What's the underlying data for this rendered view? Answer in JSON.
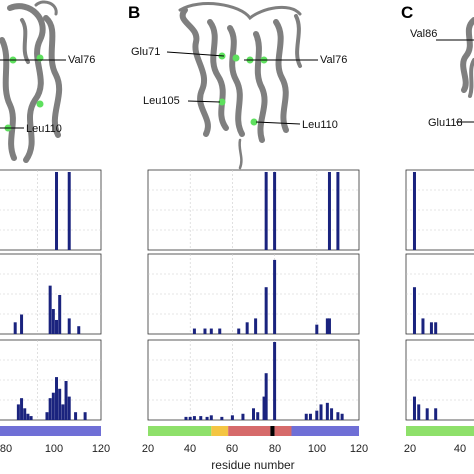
{
  "panels": [
    {
      "label": "",
      "residues": [
        "Val76",
        "Leu110"
      ],
      "x_ticks": [
        "80",
        "100",
        "120"
      ]
    },
    {
      "label": "B",
      "residues": [
        "Glu71",
        "Val76",
        "Leu105",
        "Leu110"
      ],
      "x_ticks": [
        "20",
        "40",
        "60",
        "80",
        "100",
        "120"
      ]
    },
    {
      "label": "C",
      "residues": [
        "Val86",
        "Glu118"
      ],
      "x_ticks": [
        "20",
        "40"
      ]
    }
  ],
  "x_axis_label": "residue number",
  "colors": {
    "bar": "#1a237e",
    "protein": "#7f7f7f",
    "highlight": "#5ee05e",
    "segment_green": "#8ee06a",
    "segment_yellow": "#f4c542",
    "segment_red": "#d66a6a",
    "segment_blue": "#6f6fd6",
    "segment_black": "#000000"
  },
  "chart_data": [
    {
      "type": "bar",
      "panel": "A",
      "rows": [
        {
          "x": [
            80,
            106,
            110
          ],
          "values": [
            1,
            1,
            1
          ]
        },
        {
          "x": [
            80,
            93,
            95,
            104,
            105,
            106,
            107,
            110,
            113
          ],
          "values": [
            1,
            0.15,
            0.25,
            0.62,
            0.32,
            0.18,
            0.5,
            0.2,
            0.1
          ]
        },
        {
          "x": [
            80,
            94,
            95,
            96,
            97,
            98,
            103,
            104,
            105,
            106,
            107,
            108,
            109,
            110,
            112,
            115
          ],
          "values": [
            0.9,
            0.2,
            0.28,
            0.15,
            0.08,
            0.05,
            0.1,
            0.28,
            0.35,
            0.55,
            0.4,
            0.2,
            0.5,
            0.3,
            0.1,
            0.1
          ]
        }
      ],
      "xlim": [
        75,
        120
      ],
      "segments": [
        {
          "from": 72,
          "to": 80,
          "color": "red"
        },
        {
          "from": 80,
          "to": 82,
          "color": "black"
        },
        {
          "from": 82,
          "to": 88,
          "color": "red"
        },
        {
          "from": 88,
          "to": 120,
          "color": "blue"
        }
      ]
    },
    {
      "type": "bar",
      "panel": "B",
      "rows": [
        {
          "x": [
            76,
            80,
            106,
            110
          ],
          "values": [
            1,
            1,
            1,
            1
          ]
        },
        {
          "x": [
            42,
            47,
            50,
            54,
            63,
            67,
            71,
            76,
            80,
            100,
            105,
            106
          ],
          "values": [
            0.07,
            0.07,
            0.07,
            0.07,
            0.07,
            0.15,
            0.2,
            0.6,
            0.95,
            0.12,
            0.2,
            0.2
          ]
        },
        {
          "x": [
            38,
            40,
            42,
            45,
            48,
            50,
            55,
            60,
            65,
            70,
            72,
            75,
            76,
            80,
            95,
            97,
            100,
            102,
            105,
            107,
            110,
            112
          ],
          "values": [
            0.04,
            0.04,
            0.05,
            0.05,
            0.04,
            0.06,
            0.04,
            0.06,
            0.08,
            0.15,
            0.1,
            0.3,
            0.6,
            1.0,
            0.08,
            0.08,
            0.12,
            0.2,
            0.22,
            0.15,
            0.1,
            0.08
          ]
        }
      ],
      "xlim": [
        20,
        120
      ],
      "segments": [
        {
          "from": 20,
          "to": 50,
          "color": "green"
        },
        {
          "from": 50,
          "to": 58,
          "color": "yellow"
        },
        {
          "from": 58,
          "to": 78,
          "color": "red"
        },
        {
          "from": 78,
          "to": 80,
          "color": "black"
        },
        {
          "from": 80,
          "to": 88,
          "color": "red"
        },
        {
          "from": 88,
          "to": 120,
          "color": "blue"
        }
      ]
    },
    {
      "type": "bar",
      "panel": "C",
      "rows": [
        {
          "x": [
            22
          ],
          "values": [
            1
          ]
        },
        {
          "x": [
            22,
            24,
            26,
            27
          ],
          "values": [
            0.6,
            0.2,
            0.15,
            0.15
          ]
        },
        {
          "x": [
            22,
            23,
            25,
            27
          ],
          "values": [
            0.3,
            0.2,
            0.15,
            0.15
          ]
        }
      ],
      "xlim": [
        20,
        45
      ],
      "segments": [
        {
          "from": 20,
          "to": 45,
          "color": "green"
        }
      ]
    }
  ]
}
